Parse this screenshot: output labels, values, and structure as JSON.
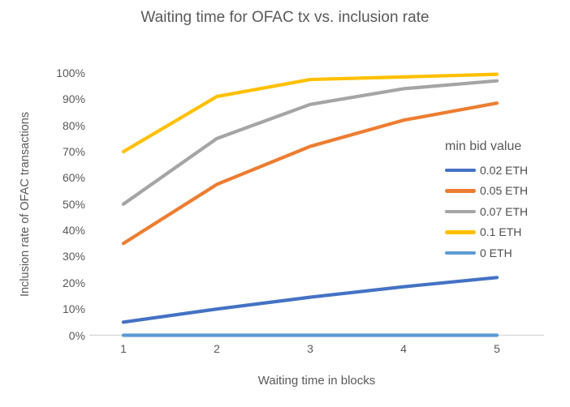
{
  "title": "Waiting time for OFAC tx vs. inclusion rate",
  "colors": {
    "axis_line": "#d9d9d9",
    "text": "#595959",
    "legend_text": "#4d4d4d",
    "background": "#ffffff"
  },
  "chart_data": {
    "type": "line",
    "title": "Waiting time for OFAC tx vs. inclusion rate",
    "xlabel": "Waiting time in blocks",
    "ylabel": "Inclusion rate of OFAC transactions",
    "x": [
      1,
      2,
      3,
      4,
      5
    ],
    "x_tick_labels": [
      "1",
      "2",
      "3",
      "4",
      "5"
    ],
    "y_tick_labels": [
      "0%",
      "10%",
      "20%",
      "30%",
      "40%",
      "50%",
      "60%",
      "70%",
      "80%",
      "90%",
      "100%"
    ],
    "ylim": [
      0,
      100
    ],
    "grid": false,
    "legend_title": "min bid value",
    "legend_position": "right-inside",
    "series": [
      {
        "name": "0.02 ETH",
        "color": "#4472C4",
        "values": [
          5,
          10,
          14.5,
          18.5,
          22
        ]
      },
      {
        "name": "0.05 ETH",
        "color": "#ED7D31",
        "values": [
          35,
          57.5,
          72,
          82,
          88.5
        ]
      },
      {
        "name": "0.07 ETH",
        "color": "#A5A5A5",
        "values": [
          50,
          75,
          88,
          94,
          97
        ]
      },
      {
        "name": "0.1 ETH",
        "color": "#FFC000",
        "values": [
          70,
          91,
          97.5,
          98.5,
          99.5
        ]
      },
      {
        "name": "0 ETH",
        "color": "#5B9BD5",
        "values": [
          0,
          0,
          0,
          0,
          0
        ]
      }
    ]
  }
}
